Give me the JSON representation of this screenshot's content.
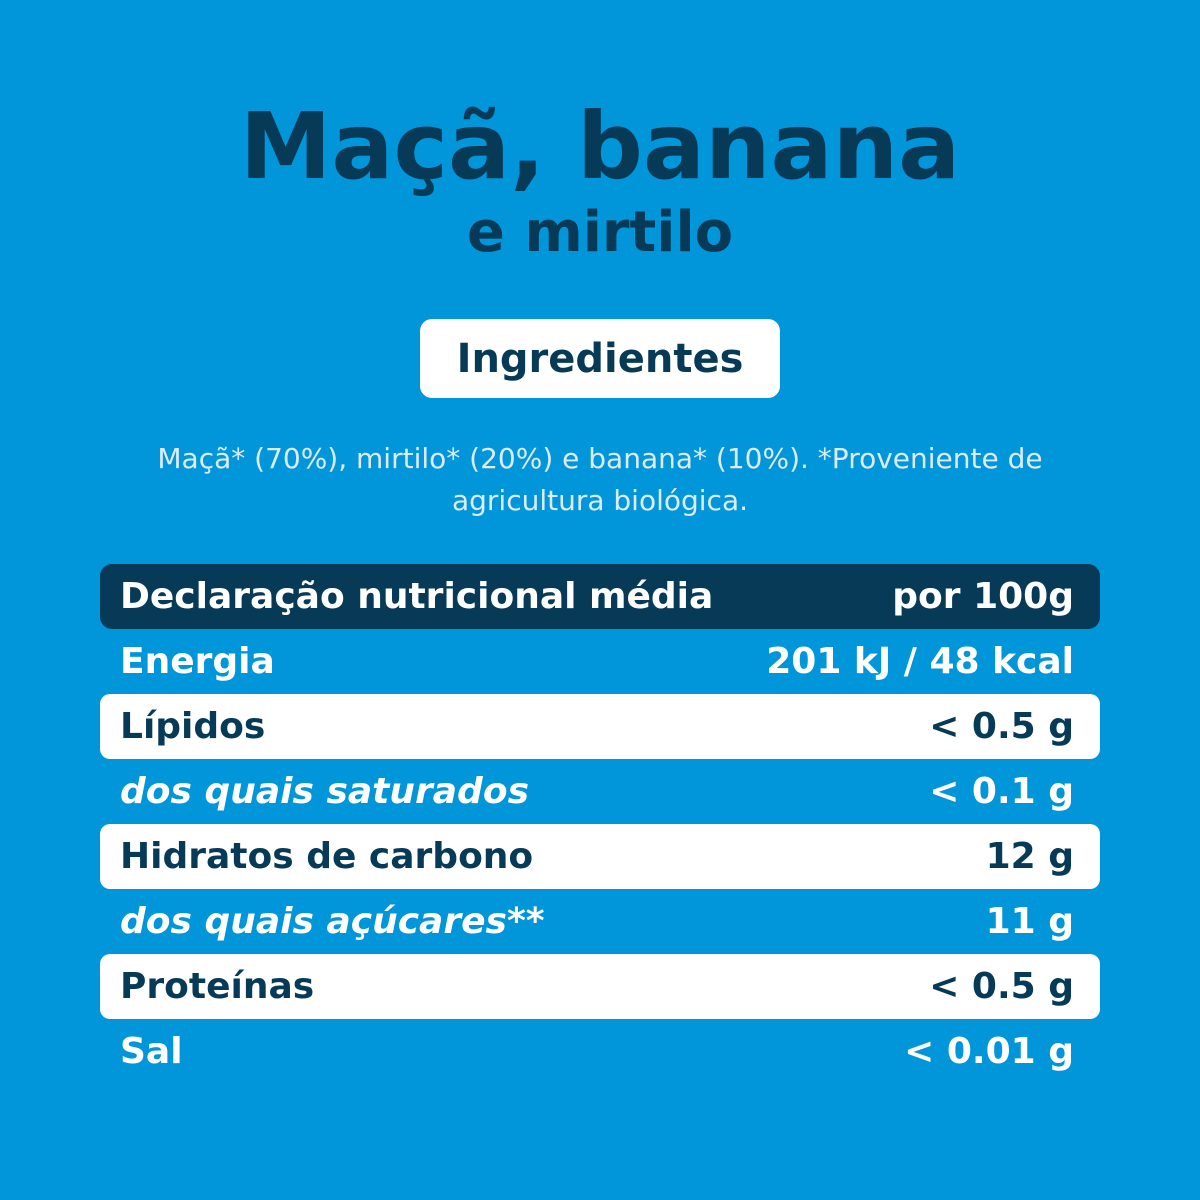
{
  "product": {
    "title_line1": "Maçã, banana",
    "title_line2": "e mirtilo"
  },
  "ingredients": {
    "heading": "Ingredientes",
    "text": "Maçã* (70%), mirtilo* (20%) e banana* (10%). *Proveniente de agricultura biológica."
  },
  "nutrition": {
    "header_label": "Declaração nutricional média",
    "header_value": "por 100g",
    "rows": [
      {
        "label": "Energia",
        "value": "201 kJ / 48 kcal"
      },
      {
        "label": "Lípidos",
        "value": "< 0.5 g"
      },
      {
        "label": "dos quais saturados",
        "value": "< 0.1 g"
      },
      {
        "label": "Hidratos de carbono",
        "value": "12 g"
      },
      {
        "label": "dos quais açúcares**",
        "value": "11 g"
      },
      {
        "label": "Proteínas",
        "value": "< 0.5 g"
      },
      {
        "label": "Sal",
        "value": "< 0.01 g"
      }
    ]
  },
  "colors": {
    "background": "#0096D9",
    "dark_navy": "#063A57",
    "white": "#FFFFFF"
  }
}
